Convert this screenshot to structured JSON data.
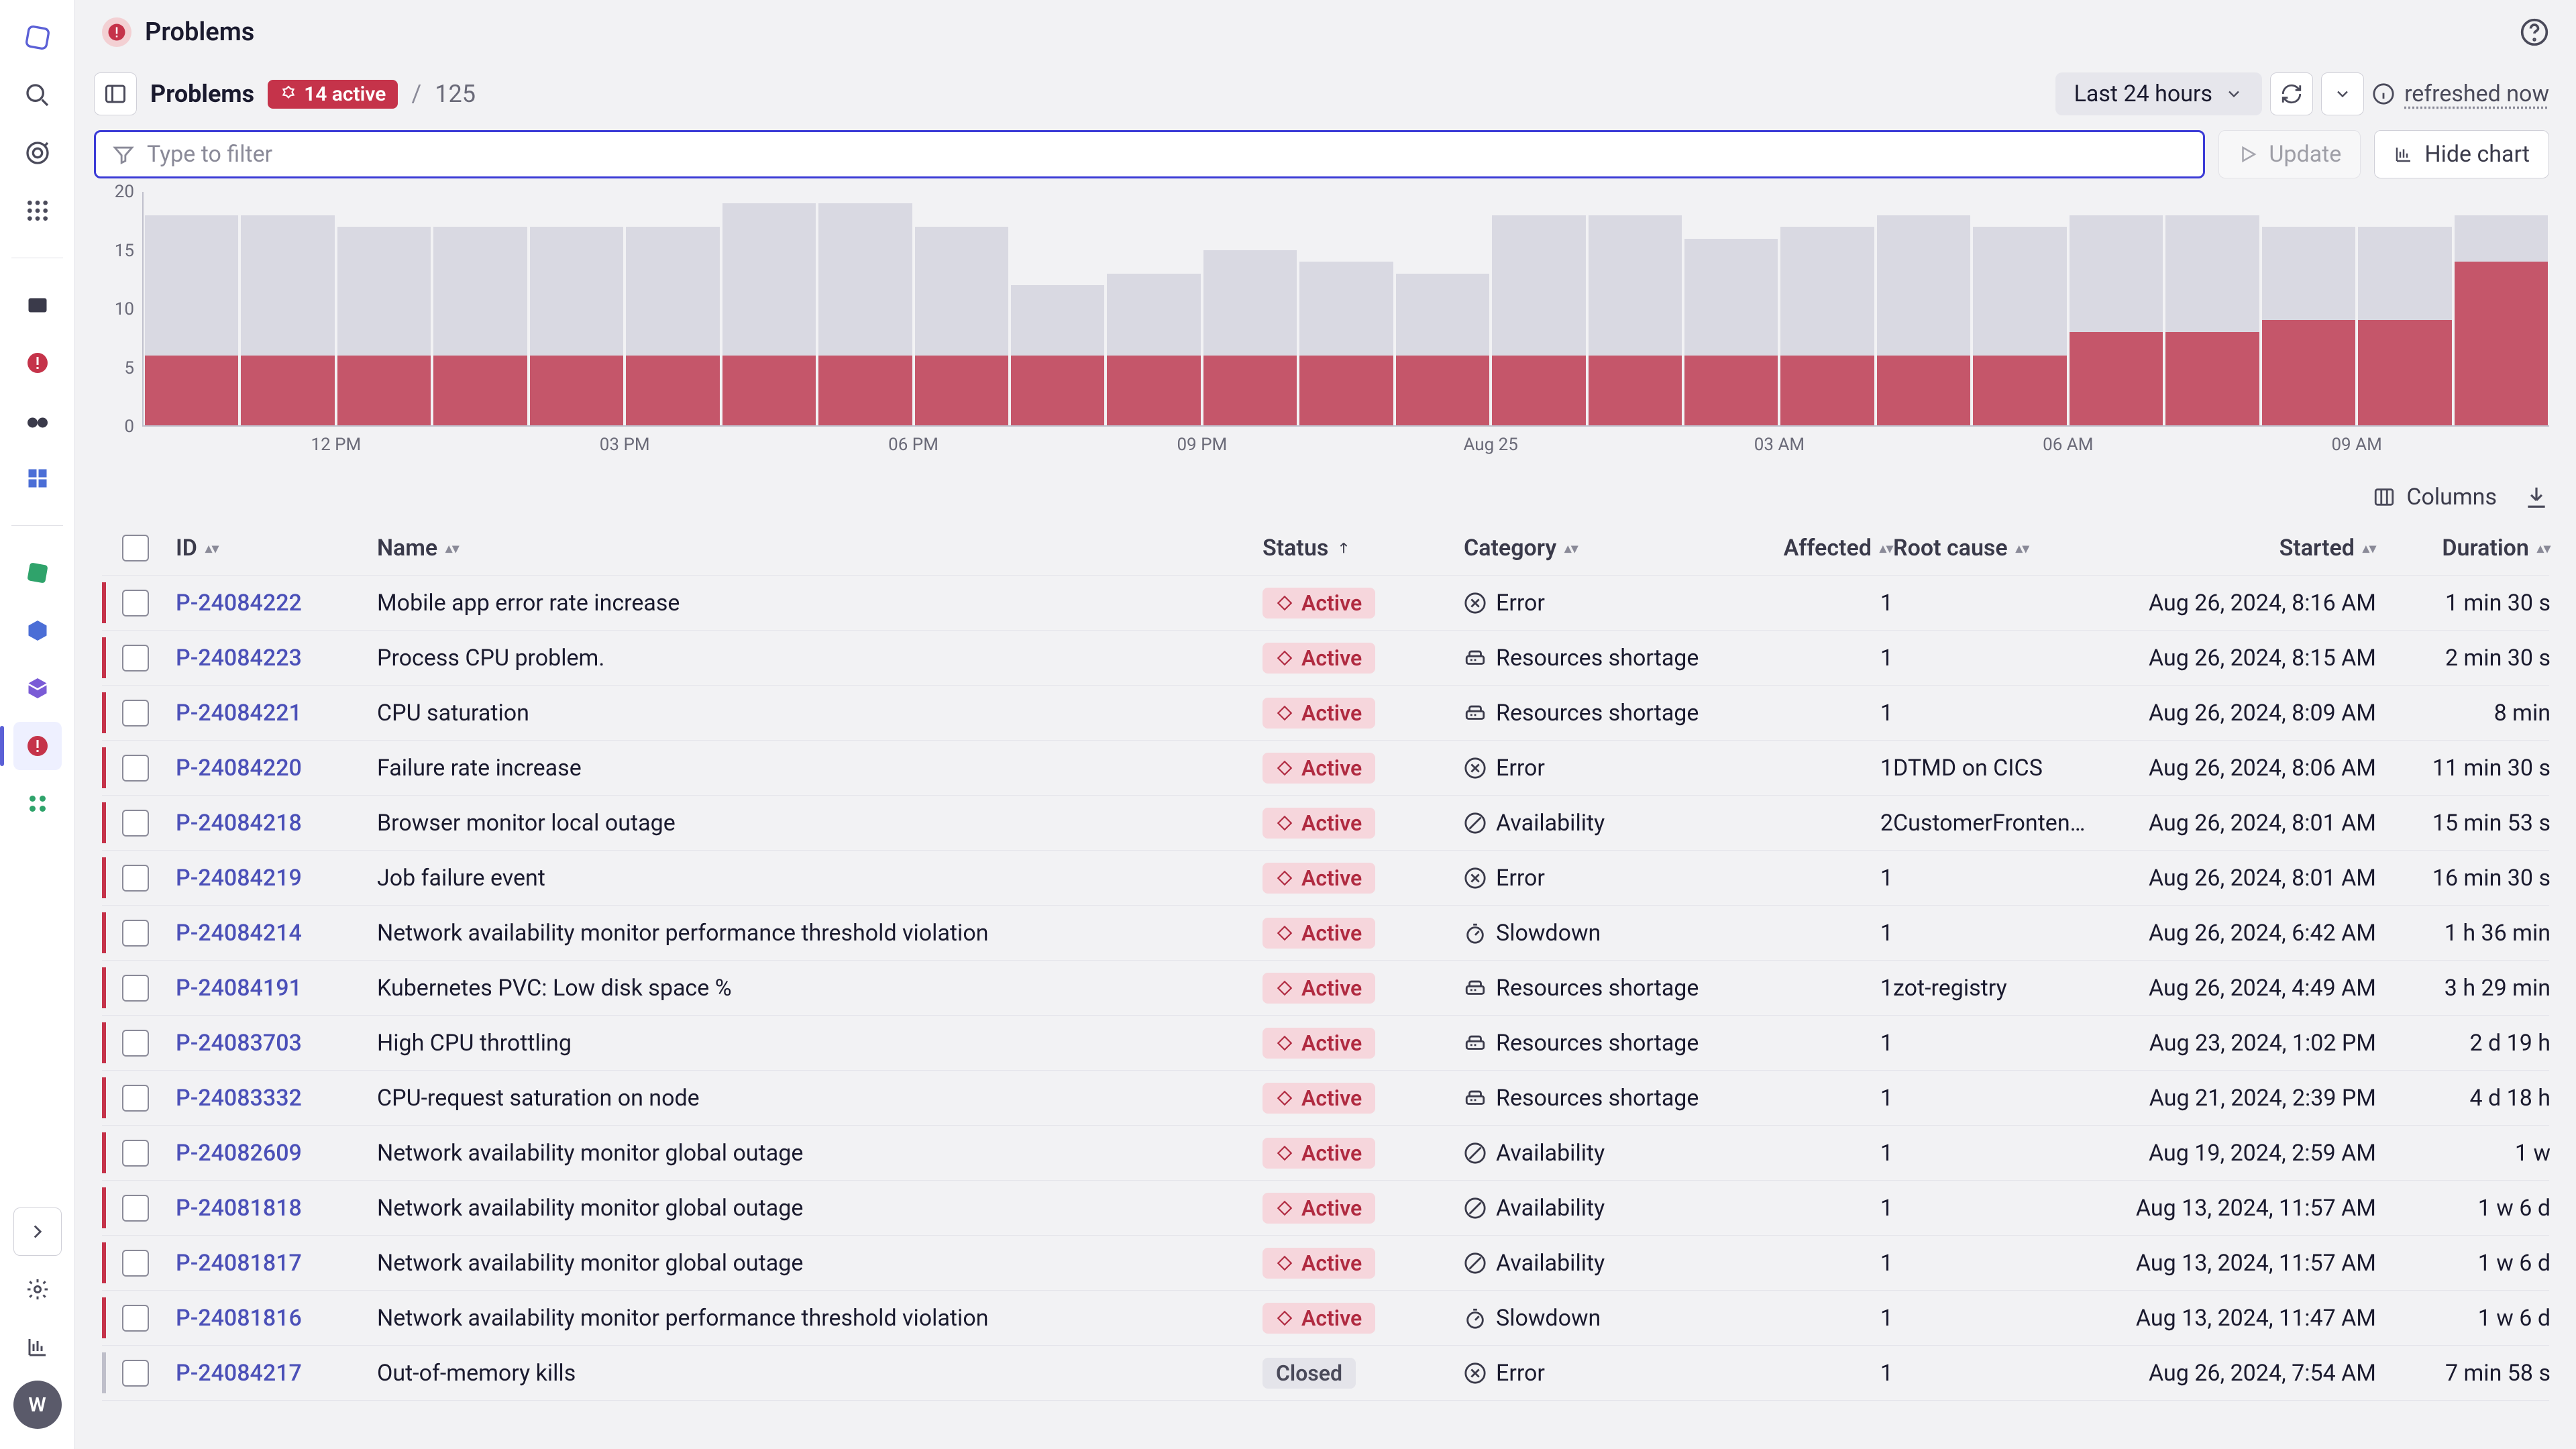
{
  "header": {
    "title": "Problems"
  },
  "breadcrumb": {
    "current": "Problems",
    "active_badge": "14 active",
    "total": "125"
  },
  "timeframe": {
    "label": "Last 24 hours"
  },
  "refreshed": "refreshed now",
  "filter": {
    "placeholder": "Type to filter"
  },
  "buttons": {
    "update": "Update",
    "hide_chart": "Hide chart",
    "columns": "Columns"
  },
  "chart": {
    "ymax": 20,
    "yticks": [
      0,
      5,
      10,
      15,
      20
    ],
    "xlabels": [
      {
        "i": 2,
        "t": "12 PM"
      },
      {
        "i": 5,
        "t": "03 PM"
      },
      {
        "i": 8,
        "t": "06 PM"
      },
      {
        "i": 11,
        "t": "09 PM"
      },
      {
        "i": 14,
        "t": "Aug 25"
      },
      {
        "i": 17,
        "t": "03 AM"
      },
      {
        "i": 20,
        "t": "06 AM"
      },
      {
        "i": 23,
        "t": "09 AM"
      }
    ],
    "bars": [
      {
        "total": 18,
        "active": 6
      },
      {
        "total": 18,
        "active": 6
      },
      {
        "total": 17,
        "active": 6
      },
      {
        "total": 17,
        "active": 6
      },
      {
        "total": 17,
        "active": 6
      },
      {
        "total": 17,
        "active": 6
      },
      {
        "total": 19,
        "active": 6
      },
      {
        "total": 19,
        "active": 6
      },
      {
        "total": 17,
        "active": 6
      },
      {
        "total": 12,
        "active": 6
      },
      {
        "total": 13,
        "active": 6
      },
      {
        "total": 15,
        "active": 6
      },
      {
        "total": 14,
        "active": 6
      },
      {
        "total": 13,
        "active": 6
      },
      {
        "total": 18,
        "active": 6
      },
      {
        "total": 18,
        "active": 6
      },
      {
        "total": 16,
        "active": 6
      },
      {
        "total": 17,
        "active": 6
      },
      {
        "total": 18,
        "active": 6
      },
      {
        "total": 17,
        "active": 6
      },
      {
        "total": 18,
        "active": 8
      },
      {
        "total": 18,
        "active": 8
      },
      {
        "total": 17,
        "active": 9
      },
      {
        "total": 17,
        "active": 9
      },
      {
        "total": 18,
        "active": 14
      }
    ],
    "bg_color": "#d9d9e2",
    "fg_color": "#c5566a"
  },
  "columns": {
    "id": "ID",
    "name": "Name",
    "status": "Status",
    "category": "Category",
    "affected": "Affected",
    "root": "Root cause",
    "started": "Started",
    "duration": "Duration"
  },
  "rows": [
    {
      "id": "P-24084222",
      "name": "Mobile app error rate increase",
      "status": "Active",
      "category": "Error",
      "cat_icon": "error",
      "affected": "1",
      "root": "",
      "started": "Aug 26, 2024, 8:16 AM",
      "duration": "1 min 30 s"
    },
    {
      "id": "P-24084223",
      "name": "Process CPU problem.",
      "status": "Active",
      "category": "Resources shortage",
      "cat_icon": "resource",
      "affected": "1",
      "root": "",
      "started": "Aug 26, 2024, 8:15 AM",
      "duration": "2 min 30 s"
    },
    {
      "id": "P-24084221",
      "name": "CPU saturation",
      "status": "Active",
      "category": "Resources shortage",
      "cat_icon": "resource",
      "affected": "1",
      "root": "",
      "started": "Aug 26, 2024, 8:09 AM",
      "duration": "8 min"
    },
    {
      "id": "P-24084220",
      "name": "Failure rate increase",
      "status": "Active",
      "category": "Error",
      "cat_icon": "error",
      "affected": "1",
      "root": "DTMD on CICS",
      "started": "Aug 26, 2024, 8:06 AM",
      "duration": "11 min 30 s"
    },
    {
      "id": "P-24084218",
      "name": "Browser monitor local outage",
      "status": "Active",
      "category": "Availability",
      "cat_icon": "avail",
      "affected": "2",
      "root": "CustomerFronten…",
      "started": "Aug 26, 2024, 8:01 AM",
      "duration": "15 min 53 s"
    },
    {
      "id": "P-24084219",
      "name": "Job failure event",
      "status": "Active",
      "category": "Error",
      "cat_icon": "error",
      "affected": "1",
      "root": "",
      "started": "Aug 26, 2024, 8:01 AM",
      "duration": "16 min 30 s"
    },
    {
      "id": "P-24084214",
      "name": "Network availability monitor performance threshold violation",
      "status": "Active",
      "category": "Slowdown",
      "cat_icon": "slow",
      "affected": "1",
      "root": "",
      "started": "Aug 26, 2024, 6:42 AM",
      "duration": "1 h 36 min"
    },
    {
      "id": "P-24084191",
      "name": "Kubernetes PVC: Low disk space %",
      "status": "Active",
      "category": "Resources shortage",
      "cat_icon": "resource",
      "affected": "1",
      "root": "zot-registry",
      "started": "Aug 26, 2024, 4:49 AM",
      "duration": "3 h 29 min"
    },
    {
      "id": "P-24083703",
      "name": "High CPU throttling",
      "status": "Active",
      "category": "Resources shortage",
      "cat_icon": "resource",
      "affected": "1",
      "root": "",
      "started": "Aug 23, 2024, 1:02 PM",
      "duration": "2 d 19 h"
    },
    {
      "id": "P-24083332",
      "name": "CPU-request saturation on node",
      "status": "Active",
      "category": "Resources shortage",
      "cat_icon": "resource",
      "affected": "1",
      "root": "",
      "started": "Aug 21, 2024, 2:39 PM",
      "duration": "4 d 18 h"
    },
    {
      "id": "P-24082609",
      "name": "Network availability monitor global outage",
      "status": "Active",
      "category": "Availability",
      "cat_icon": "avail",
      "affected": "1",
      "root": "",
      "started": "Aug 19, 2024, 2:59 AM",
      "duration": "1 w"
    },
    {
      "id": "P-24081818",
      "name": "Network availability monitor global outage",
      "status": "Active",
      "category": "Availability",
      "cat_icon": "avail",
      "affected": "1",
      "root": "",
      "started": "Aug 13, 2024, 11:57 AM",
      "duration": "1 w 6 d"
    },
    {
      "id": "P-24081817",
      "name": "Network availability monitor global outage",
      "status": "Active",
      "category": "Availability",
      "cat_icon": "avail",
      "affected": "1",
      "root": "",
      "started": "Aug 13, 2024, 11:57 AM",
      "duration": "1 w 6 d"
    },
    {
      "id": "P-24081816",
      "name": "Network availability monitor performance threshold violation",
      "status": "Active",
      "category": "Slowdown",
      "cat_icon": "slow",
      "affected": "1",
      "root": "",
      "started": "Aug 13, 2024, 11:47 AM",
      "duration": "1 w 6 d"
    },
    {
      "id": "P-24084217",
      "name": "Out-of-memory kills",
      "status": "Closed",
      "category": "Error",
      "cat_icon": "error",
      "affected": "1",
      "root": "",
      "started": "Aug 26, 2024, 7:54 AM",
      "duration": "7 min 58 s"
    }
  ]
}
